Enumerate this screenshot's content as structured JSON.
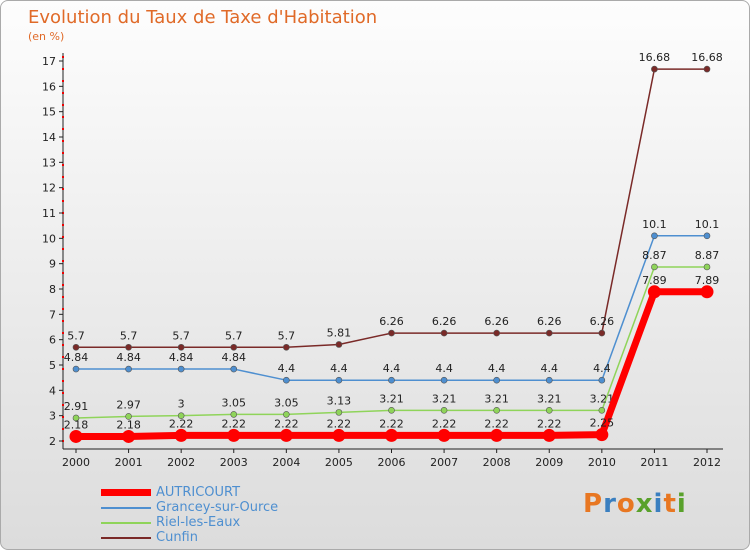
{
  "chart_data": {
    "type": "line",
    "title": "Evolution du Taux de Taxe d'Habitation",
    "ylabel": "(en %)",
    "x": [
      "2000",
      "2001",
      "2002",
      "2003",
      "2004",
      "2005",
      "2006",
      "2007",
      "2008",
      "2009",
      "2010",
      "2011",
      "2012"
    ],
    "ylim": [
      2,
      17
    ],
    "yticks": [
      2,
      3,
      4,
      5,
      6,
      7,
      8,
      9,
      10,
      11,
      12,
      13,
      14,
      15,
      16,
      17
    ],
    "series": [
      {
        "name": "Cunfin",
        "color": "#7a2a28",
        "values": [
          5.7,
          5.7,
          5.7,
          5.7,
          5.7,
          5.81,
          6.26,
          6.26,
          6.26,
          6.26,
          6.26,
          16.68,
          16.68
        ],
        "labels": [
          "5.7",
          "5.7",
          "5.7",
          "5.7",
          "5.7",
          "5.81",
          "6.26",
          "6.26",
          "6.26",
          "6.26",
          "6.26",
          "16.68",
          "16.68"
        ]
      },
      {
        "name": "Grancey-sur-Ource",
        "color": "#4e8fd0",
        "values": [
          4.84,
          4.84,
          4.84,
          4.84,
          4.4,
          4.4,
          4.4,
          4.4,
          4.4,
          4.4,
          4.4,
          10.1,
          10.1
        ],
        "labels": [
          "4.84",
          "4.84",
          "4.84",
          "4.84",
          "4.4",
          "4.4",
          "4.4",
          "4.4",
          "4.4",
          "4.4",
          "4.4",
          "10.1",
          "10.1"
        ]
      },
      {
        "name": "Riel-les-Eaux",
        "color": "#8fd45a",
        "values": [
          2.91,
          2.97,
          3,
          3.05,
          3.05,
          3.13,
          3.21,
          3.21,
          3.21,
          3.21,
          3.21,
          8.87,
          8.87
        ],
        "labels": [
          "2.91",
          "2.97",
          "3",
          "3.05",
          "3.05",
          "3.13",
          "3.21",
          "3.21",
          "3.21",
          "3.21",
          "3.21",
          "8.87",
          "8.87"
        ]
      },
      {
        "name": "AUTRICOURT",
        "color": "#ff0000",
        "values": [
          2.18,
          2.18,
          2.22,
          2.22,
          2.22,
          2.22,
          2.22,
          2.22,
          2.22,
          2.22,
          2.25,
          7.89,
          7.89
        ],
        "labels": [
          "2.18",
          "2.18",
          "2.22",
          "2.22",
          "2.22",
          "2.22",
          "2.22",
          "2.22",
          "2.22",
          "2.22",
          "2.25",
          "7.89",
          "7.89"
        ]
      }
    ],
    "legend_order": [
      "AUTRICOURT",
      "Grancey-sur-Ource",
      "Riel-les-Eaux",
      "Cunfin"
    ]
  },
  "logo": {
    "text": "Proxiti",
    "colors": [
      "#e87722",
      "#3a7fc0",
      "#e87722",
      "#59a12b",
      "#3a7fc0",
      "#e87722",
      "#59a12b"
    ]
  }
}
